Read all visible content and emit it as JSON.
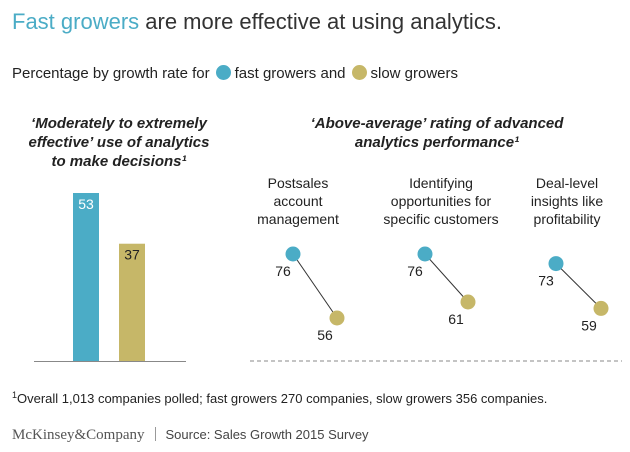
{
  "title": {
    "highlight": "Fast growers",
    "rest": " are more effective at using analytics."
  },
  "legend": {
    "prefix": "Percentage by growth rate for",
    "fast_label": "fast growers and",
    "slow_label": "slow growers"
  },
  "colors": {
    "fast": "#4bacc6",
    "slow": "#c6b768",
    "connector": "#333333",
    "axis": "#888888"
  },
  "chart_data": [
    {
      "type": "bar",
      "title": "'Moderately to extremely effective' use of analytics to make decisions¹",
      "title_lines": [
        "‘Moderately to extremely",
        "effective’ use of analytics",
        "to make decisions¹"
      ],
      "categories": [
        "fast growers",
        "slow growers"
      ],
      "values": [
        53,
        37
      ],
      "ylim": [
        0,
        60
      ]
    },
    {
      "type": "scatter",
      "title": "'Above-average' rating of advanced analytics performance¹",
      "title_lines": [
        "‘Above-average’ rating of advanced",
        "analytics performance¹"
      ],
      "categories": [
        [
          "Postsales",
          "account",
          "management"
        ],
        [
          "Identifying",
          "opportunities for",
          "specific customers"
        ],
        [
          "Deal-level",
          "insights like",
          "profitability"
        ]
      ],
      "series": [
        {
          "name": "fast growers",
          "values": [
            76,
            76,
            73
          ]
        },
        {
          "name": "slow growers",
          "values": [
            56,
            61,
            59
          ]
        }
      ],
      "ylim": [
        50,
        80
      ]
    }
  ],
  "footnote": {
    "marker": "1",
    "text": "Overall 1,013 companies polled; fast growers 270 companies, slow growers 356 companies."
  },
  "brand": "McKinsey&Company",
  "source": "Source: Sales Growth 2015 Survey"
}
